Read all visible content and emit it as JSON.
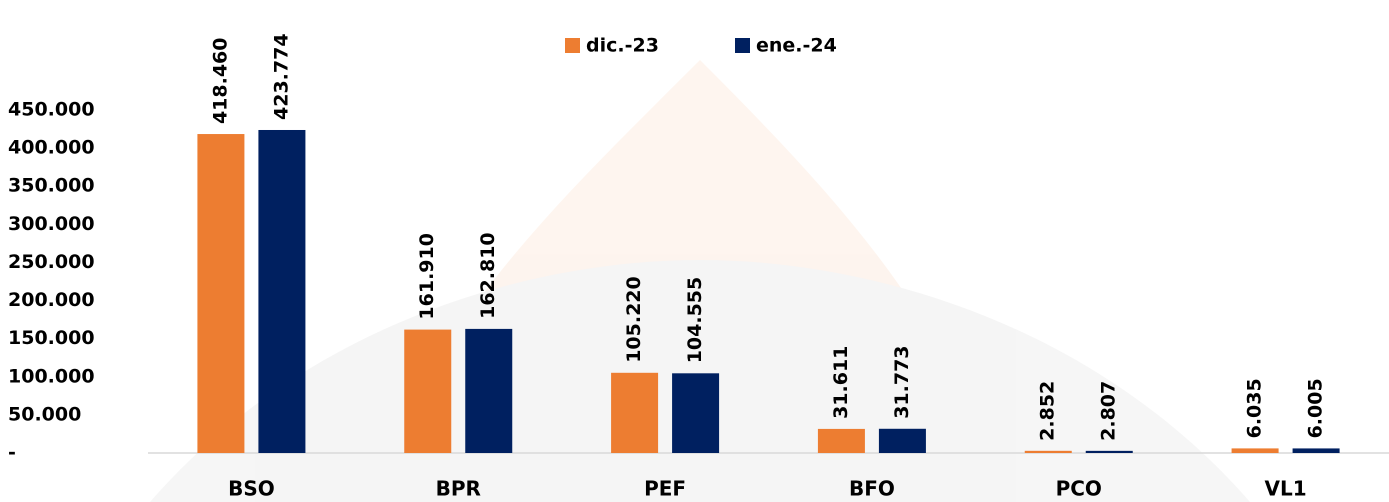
{
  "chart_data": {
    "type": "bar",
    "categories": [
      "BSO",
      "BPR",
      "PEF",
      "BFO",
      "PCO",
      "VL1"
    ],
    "series": [
      {
        "name": "dic.-23",
        "color": "#ED7D31",
        "values": [
          418460,
          161910,
          105220,
          31611,
          2852,
          6035
        ],
        "value_labels": [
          "418.460",
          "161.910",
          "105.220",
          "31.611",
          "2.852",
          "6.035"
        ]
      },
      {
        "name": "ene.-24",
        "color": "#002060",
        "values": [
          423774,
          162810,
          104555,
          31773,
          2807,
          6005
        ],
        "value_labels": [
          "423.774",
          "162.810",
          "104.555",
          "31.773",
          "2.807",
          "6.005"
        ]
      }
    ],
    "ylim": [
      0,
      450000
    ],
    "yticks": [
      {
        "value": 0,
        "label": "-"
      },
      {
        "value": 50000,
        "label": "50.000"
      },
      {
        "value": 100000,
        "label": "100.000"
      },
      {
        "value": 150000,
        "label": "150.000"
      },
      {
        "value": 200000,
        "label": "200.000"
      },
      {
        "value": 250000,
        "label": "250.000"
      },
      {
        "value": 300000,
        "label": "300.000"
      },
      {
        "value": 350000,
        "label": "350.000"
      },
      {
        "value": 400000,
        "label": "400.000"
      },
      {
        "value": 450000,
        "label": "450.000"
      }
    ],
    "grid": false,
    "legend": "top"
  }
}
